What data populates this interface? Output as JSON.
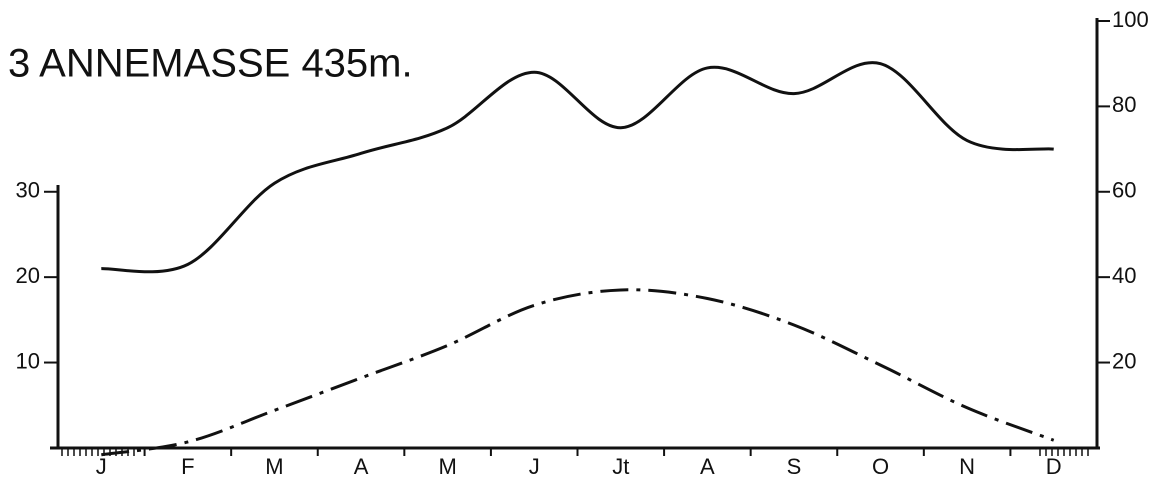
{
  "chart_data": {
    "type": "line",
    "title": "3 ANNEMASSE 435m.",
    "categories": [
      "J",
      "F",
      "M",
      "A",
      "M",
      "J",
      "Jt",
      "A",
      "S",
      "O",
      "N",
      "D"
    ],
    "series": [
      {
        "color": "#111111",
        "axis": "y2",
        "dash": "solid",
        "values": [
          42,
          43,
          62,
          69,
          75,
          88,
          75,
          89,
          83,
          90,
          72,
          70
        ]
      },
      {
        "color": "#111111",
        "axis": "y",
        "dash": "dashdot",
        "values": [
          -0.8,
          0.7,
          4.4,
          8.2,
          12,
          16.7,
          18.5,
          17.5,
          14.4,
          9.7,
          4.7,
          0.9
        ]
      }
    ],
    "ylim": [
      -2,
      50
    ],
    "yticks": [
      10,
      20,
      30
    ],
    "y2lim": [
      -4,
      100
    ],
    "y2ticks": [
      20,
      40,
      60,
      80,
      100
    ],
    "grid": false
  }
}
